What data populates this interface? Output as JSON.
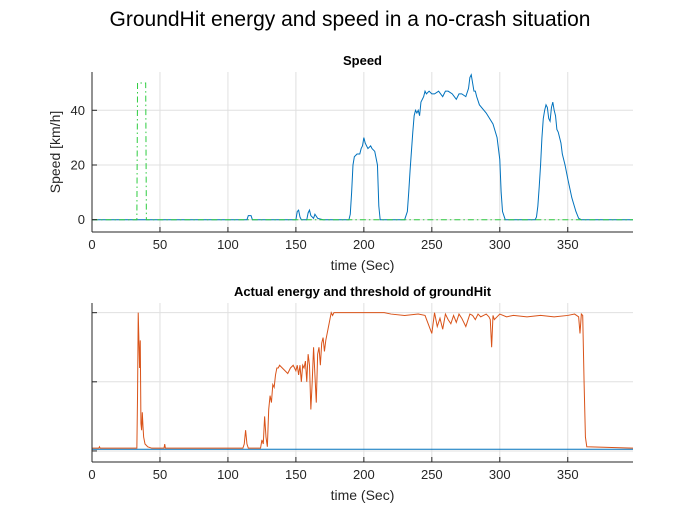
{
  "figure_title": "GroundHit energy and speed in a no-crash situation",
  "colors": {
    "blue": "#0072BD",
    "orange": "#D95319",
    "green": "#2ECC40",
    "grid": "#E0E0E0",
    "axis": "#262626"
  },
  "chart_data": [
    {
      "type": "line",
      "title": "Speed",
      "xlabel": "time (Sec)",
      "ylabel": "Speed [km/h]",
      "xlim": [
        0,
        398
      ],
      "ylim": [
        -4.5,
        54
      ],
      "xticks": [
        0,
        50,
        100,
        150,
        200,
        250,
        300,
        350
      ],
      "yticks": [
        0,
        20,
        40
      ],
      "grid": true,
      "series": [
        {
          "style": "solid",
          "color": "#0072BD",
          "x": [
            0,
            100,
            114,
            115,
            117,
            118,
            150,
            151,
            152,
            153,
            154,
            158,
            159,
            160,
            161,
            163,
            164,
            166,
            170,
            189,
            190,
            191,
            192,
            193,
            195,
            197,
            198,
            199,
            200,
            201,
            202,
            203,
            205,
            206,
            208,
            210,
            211,
            212,
            230,
            232,
            233,
            234,
            235,
            236,
            237,
            238,
            239,
            240,
            241,
            242,
            243,
            244,
            245,
            246,
            248,
            250,
            252,
            255,
            258,
            260,
            262,
            265,
            268,
            270,
            272,
            275,
            277,
            278,
            279,
            280,
            281,
            282,
            283,
            285,
            290,
            295,
            298,
            300,
            301,
            302,
            304,
            306,
            320,
            326,
            327,
            328,
            329,
            330,
            331,
            332,
            333,
            334,
            335,
            336,
            337,
            338,
            339,
            340,
            341,
            342,
            343,
            344,
            345,
            346,
            348,
            350,
            353,
            356,
            358,
            360,
            398
          ],
          "y": [
            0,
            0,
            0,
            1.5,
            1.5,
            0,
            0,
            3,
            3.5,
            1,
            0,
            0,
            2.5,
            3.5,
            1.5,
            0.5,
            2,
            0.5,
            0,
            0,
            2,
            10,
            20,
            23,
            24,
            24,
            26,
            27,
            30,
            28,
            27,
            26,
            27,
            26,
            25,
            20,
            5,
            0,
            0,
            3,
            10,
            18,
            25,
            32,
            38,
            40,
            39,
            40,
            38,
            43,
            44,
            45,
            47,
            46,
            47,
            46,
            46,
            47,
            45,
            47,
            47,
            46,
            44,
            46,
            46,
            45,
            48,
            52,
            53,
            50,
            47,
            47,
            45,
            42,
            39,
            35,
            30,
            22,
            10,
            3,
            0,
            0,
            0,
            0,
            1,
            5,
            12,
            20,
            30,
            37,
            40,
            42,
            41,
            37,
            36,
            41,
            43,
            40,
            38,
            33,
            32,
            30,
            28,
            24,
            20,
            15,
            8,
            3,
            0.5,
            0,
            0
          ]
        },
        {
          "style": "dashdot",
          "color": "#2ECC40",
          "x": [
            0,
            33,
            33.5,
            39.5,
            40,
            398
          ],
          "y": [
            0,
            0,
            50,
            50,
            0,
            0
          ]
        }
      ]
    },
    {
      "type": "line",
      "title": "Actual energy and threshold of groundHit",
      "xlabel": "time (Sec)",
      "ylabel": "",
      "xlim": [
        0,
        398
      ],
      "ylim": [
        -0.08,
        1.07
      ],
      "xticks": [
        0,
        50,
        100,
        150,
        200,
        250,
        300,
        350
      ],
      "yticks": [
        0,
        0.5,
        1
      ],
      "ytick_labels_shown": false,
      "grid": true,
      "series": [
        {
          "style": "solid",
          "color": "#0072BD",
          "x": [
            0,
            398
          ],
          "y": [
            0.012,
            0.012
          ]
        },
        {
          "style": "solid",
          "color": "#D95319",
          "x": [
            0,
            5,
            5.5,
            6,
            33,
            33.5,
            34,
            35,
            35.5,
            36,
            36.5,
            37,
            37.5,
            38,
            39,
            40,
            41,
            44,
            45,
            53,
            53.5,
            54,
            100,
            111,
            112,
            113,
            114,
            115,
            117,
            120,
            124,
            125,
            126,
            127,
            128,
            129,
            130,
            131,
            132,
            133,
            134,
            135,
            136,
            137,
            138,
            140,
            142,
            144,
            146,
            148,
            150,
            151,
            152,
            153,
            154,
            155,
            156,
            157,
            158,
            159,
            160,
            161,
            162,
            163,
            164,
            165,
            166,
            167,
            168,
            169,
            170,
            171,
            172,
            173,
            174,
            175,
            176,
            177,
            178,
            179,
            180,
            182,
            185,
            190,
            200,
            210,
            215,
            220,
            230,
            240,
            245,
            250,
            252,
            254,
            256,
            258,
            260,
            262,
            264,
            266,
            268,
            270,
            272,
            275,
            278,
            280,
            282,
            284,
            286,
            288,
            290,
            292,
            293,
            294,
            295,
            296,
            298,
            300,
            305,
            310,
            320,
            330,
            340,
            350,
            355,
            358,
            359,
            360,
            361,
            362,
            363,
            364,
            398
          ],
          "y": [
            0.02,
            0.02,
            0.03,
            0.02,
            0.02,
            0.4,
            1.0,
            0.6,
            0.8,
            0.2,
            0.15,
            0.28,
            0.18,
            0.1,
            0.05,
            0.04,
            0.03,
            0.02,
            0.02,
            0.02,
            0.05,
            0.02,
            0.02,
            0.02,
            0.05,
            0.15,
            0.05,
            0.02,
            0.02,
            0.02,
            0.02,
            0.08,
            0.05,
            0.25,
            0.1,
            0.03,
            0.3,
            0.4,
            0.35,
            0.48,
            0.46,
            0.55,
            0.6,
            0.6,
            0.62,
            0.6,
            0.58,
            0.56,
            0.6,
            0.62,
            0.58,
            0.62,
            0.55,
            0.62,
            0.5,
            0.62,
            0.6,
            0.65,
            0.5,
            0.7,
            0.62,
            0.3,
            0.5,
            0.75,
            0.55,
            0.35,
            0.7,
            0.75,
            0.62,
            0.78,
            0.82,
            0.72,
            0.8,
            0.85,
            0.9,
            0.95,
            1.0,
            0.98,
            1.0,
            1.0,
            1.0,
            1.0,
            1.0,
            1.0,
            1.0,
            1.0,
            1.0,
            0.99,
            0.98,
            0.99,
            0.98,
            0.85,
            1.0,
            0.9,
            0.96,
            0.88,
            0.99,
            0.95,
            0.92,
            0.98,
            0.93,
            0.99,
            0.96,
            0.9,
            0.99,
            0.98,
            0.95,
            0.99,
            0.97,
            0.98,
            0.99,
            0.97,
            0.95,
            0.75,
            0.98,
            0.95,
            0.97,
            0.99,
            0.97,
            0.98,
            0.97,
            0.98,
            0.97,
            0.98,
            0.99,
            0.97,
            0.85,
            0.99,
            0.98,
            0.5,
            0.1,
            0.03,
            0.02
          ]
        }
      ]
    }
  ]
}
